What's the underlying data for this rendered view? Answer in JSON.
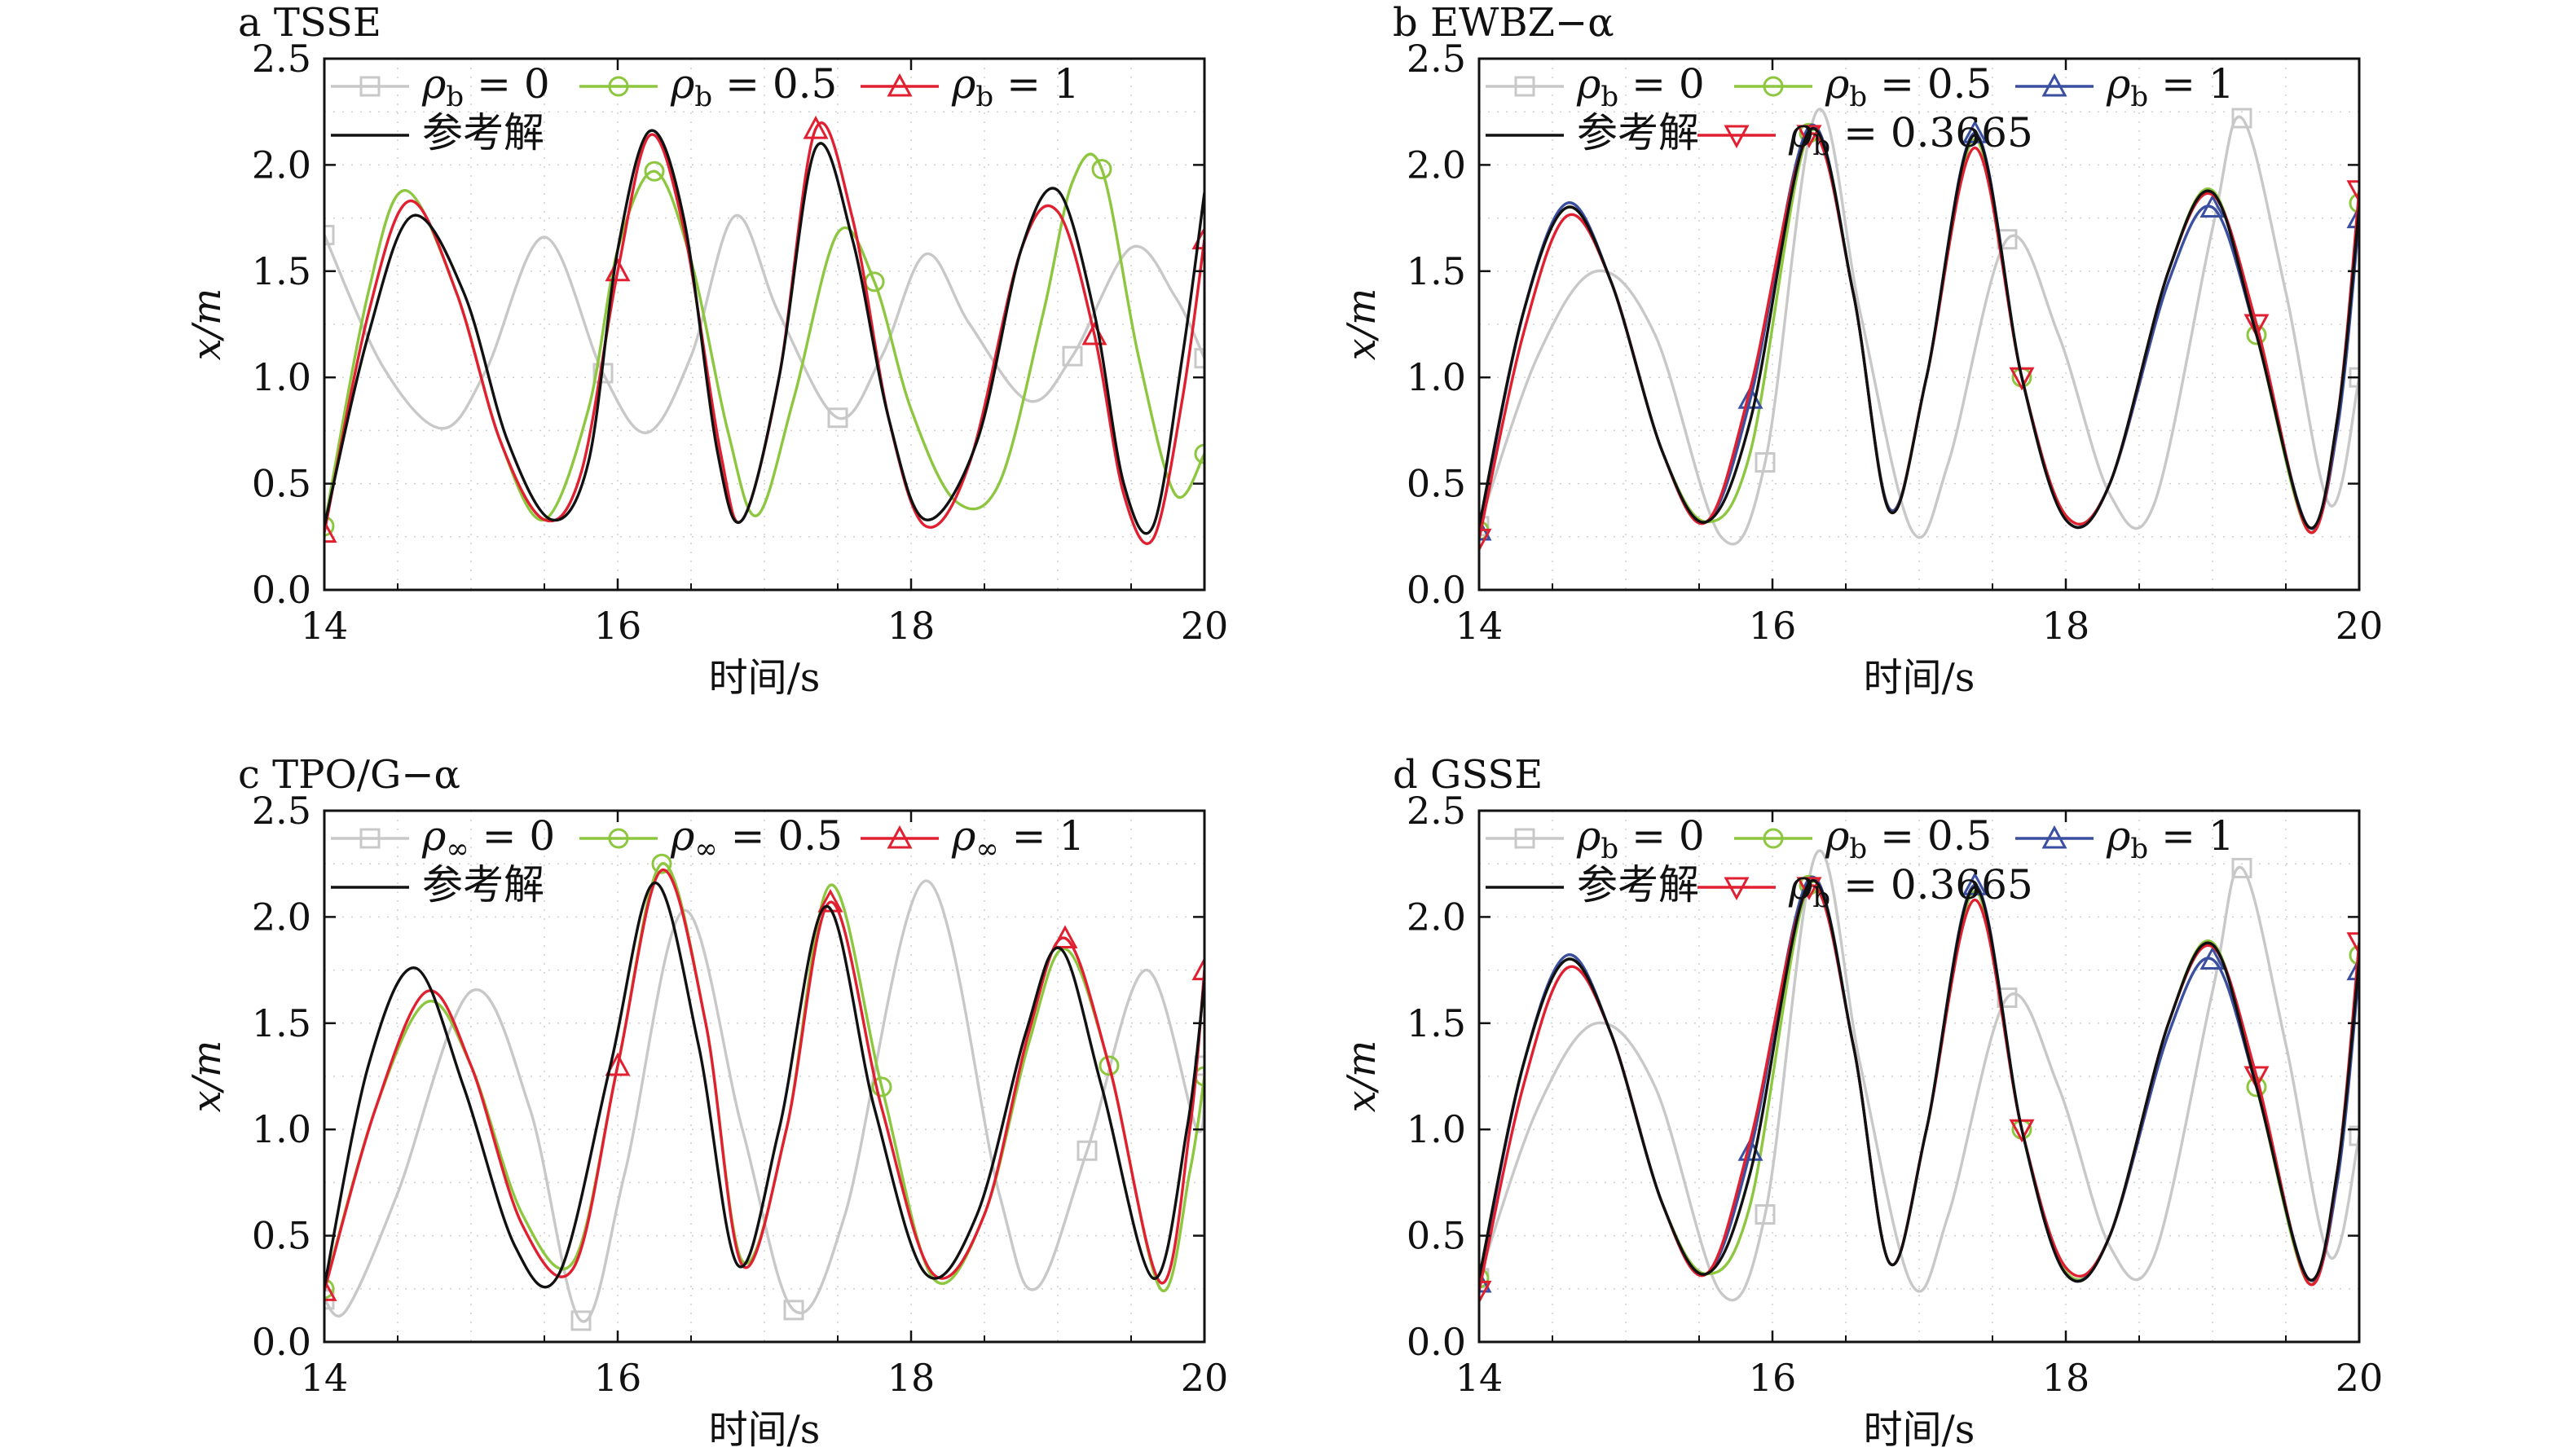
{
  "figure": {
    "panel_titles": [
      "a TSSE",
      "b EWBZ−α",
      "c TPO/G−α",
      "d GSSE"
    ]
  },
  "chart_data": [
    {
      "type": "line",
      "title": "a TSSE",
      "xlabel": "时间/s",
      "ylabel": "x/m",
      "xlim": [
        14,
        20
      ],
      "ylim": [
        0,
        2.5
      ],
      "xticks": [
        "14",
        "16",
        "18",
        "20"
      ],
      "yticks": [
        "0.0",
        "0.5",
        "1.0",
        "1.5",
        "2.0",
        "2.5"
      ],
      "grid": "dotted",
      "legend": "top-left",
      "series": [
        {
          "name": "ρ_b = 0",
          "legend_label": "ρb = 0",
          "color": "#c8c8c8",
          "marker": "square",
          "x": [
            14.0,
            14.4,
            14.8,
            15.1,
            15.5,
            15.9,
            16.2,
            16.5,
            16.8,
            17.1,
            17.5,
            17.8,
            18.1,
            18.4,
            18.8,
            19.1,
            19.5,
            19.8,
            20.0
          ],
          "y": [
            1.67,
            1.05,
            0.76,
            1.03,
            1.66,
            1.02,
            0.74,
            1.1,
            1.76,
            1.3,
            0.81,
            1.1,
            1.58,
            1.25,
            0.89,
            1.1,
            1.61,
            1.38,
            1.09
          ]
        },
        {
          "name": "ρ_b = 0.5",
          "legend_label": "ρb = 0.5",
          "color": "#8dc63f",
          "marker": "circle",
          "x": [
            14.0,
            14.3,
            14.55,
            14.9,
            15.2,
            15.5,
            15.8,
            16.0,
            16.25,
            16.5,
            16.75,
            16.95,
            17.2,
            17.5,
            17.75,
            18.0,
            18.3,
            18.6,
            18.9,
            19.1,
            19.3,
            19.55,
            19.8,
            20.0
          ],
          "y": [
            0.3,
            1.4,
            1.88,
            1.4,
            0.7,
            0.33,
            0.85,
            1.6,
            1.97,
            1.55,
            0.75,
            0.35,
            0.9,
            1.68,
            1.45,
            0.85,
            0.42,
            0.5,
            1.3,
            1.92,
            1.98,
            1.1,
            0.45,
            0.64
          ]
        },
        {
          "name": "ρ_b = 1",
          "legend_label": "ρb = 1",
          "color": "#e02030",
          "marker": "triangle",
          "x": [
            14.0,
            14.3,
            14.58,
            14.9,
            15.2,
            15.5,
            15.75,
            16.0,
            16.22,
            16.45,
            16.7,
            16.85,
            17.1,
            17.35,
            17.6,
            17.85,
            18.1,
            18.4,
            18.75,
            19.0,
            19.25,
            19.45,
            19.65,
            19.85,
            20.0
          ],
          "y": [
            0.27,
            1.3,
            1.83,
            1.4,
            0.7,
            0.33,
            0.55,
            1.5,
            2.14,
            1.7,
            0.65,
            0.33,
            1.0,
            2.17,
            1.75,
            0.8,
            0.3,
            0.6,
            1.6,
            1.78,
            1.2,
            0.45,
            0.24,
            0.9,
            1.65
          ]
        },
        {
          "name": "参考解",
          "legend_label": "参考解",
          "color": "#111111",
          "marker": "none",
          "x": [
            14.0,
            14.3,
            14.6,
            14.95,
            15.25,
            15.55,
            15.8,
            16.0,
            16.22,
            16.45,
            16.68,
            16.85,
            17.1,
            17.35,
            17.6,
            17.85,
            18.1,
            18.45,
            18.75,
            19.0,
            19.25,
            19.45,
            19.65,
            19.85,
            20.0
          ],
          "y": [
            0.3,
            1.2,
            1.76,
            1.4,
            0.7,
            0.33,
            0.6,
            1.6,
            2.16,
            1.75,
            0.65,
            0.33,
            1.0,
            2.08,
            1.65,
            0.8,
            0.33,
            0.7,
            1.6,
            1.88,
            1.3,
            0.5,
            0.3,
            1.1,
            1.87
          ]
        }
      ]
    },
    {
      "type": "line",
      "title": "b EWBZ−α",
      "xlabel": "时间/s",
      "ylabel": "x/m",
      "xlim": [
        14,
        20
      ],
      "ylim": [
        0,
        2.5
      ],
      "xticks": [
        "14",
        "16",
        "18",
        "20"
      ],
      "yticks": [
        "0.0",
        "0.5",
        "1.0",
        "1.5",
        "2.0",
        "2.5"
      ],
      "grid": "dotted",
      "legend": "top-left",
      "series": [
        {
          "name": "ρ_b = 0",
          "legend_label": "ρb = 0",
          "color": "#c8c8c8",
          "marker": "square",
          "x": [
            14.0,
            14.4,
            14.8,
            15.2,
            15.65,
            15.95,
            16.3,
            16.6,
            16.95,
            17.2,
            17.6,
            17.95,
            18.3,
            18.6,
            19.0,
            19.2,
            19.5,
            19.8,
            20.0
          ],
          "y": [
            0.3,
            1.1,
            1.5,
            1.2,
            0.25,
            0.6,
            2.25,
            1.3,
            0.28,
            0.6,
            1.65,
            1.2,
            0.45,
            0.4,
            1.7,
            2.22,
            1.4,
            0.4,
            1.0
          ]
        },
        {
          "name": "ρ_b = 0.5",
          "legend_label": "ρb = 0.5",
          "color": "#8dc63f",
          "marker": "circle",
          "x": [
            14.0,
            14.3,
            14.6,
            14.9,
            15.25,
            15.55,
            15.85,
            16.25,
            16.55,
            16.8,
            17.05,
            17.38,
            17.7,
            18.0,
            18.3,
            18.7,
            19.0,
            19.3,
            19.65,
            19.85,
            20.0
          ],
          "y": [
            0.28,
            1.3,
            1.8,
            1.45,
            0.65,
            0.32,
            0.65,
            2.15,
            1.4,
            0.38,
            1.0,
            2.12,
            1.0,
            0.35,
            0.5,
            1.5,
            1.88,
            1.2,
            0.28,
            0.8,
            1.82
          ]
        },
        {
          "name": "ρ_b = 1",
          "legend_label": "ρb = 1",
          "color": "#3a4fa0",
          "marker": "triangle",
          "x": [
            14.0,
            14.3,
            14.6,
            14.9,
            15.25,
            15.55,
            15.85,
            16.25,
            16.55,
            16.8,
            17.05,
            17.38,
            17.7,
            18.0,
            18.3,
            18.7,
            19.0,
            19.3,
            19.65,
            19.85,
            20.0
          ],
          "y": [
            0.28,
            1.3,
            1.82,
            1.45,
            0.65,
            0.32,
            0.9,
            2.18,
            1.4,
            0.38,
            1.0,
            2.15,
            1.0,
            0.33,
            0.5,
            1.45,
            1.8,
            1.2,
            0.3,
            0.75,
            1.75
          ]
        },
        {
          "name": "ρ_b = 0.3665",
          "legend_label": "ρb = 0.3665",
          "color": "#e02030",
          "marker": "triangle-down",
          "x": [
            14.0,
            14.3,
            14.6,
            14.9,
            15.25,
            15.55,
            15.85,
            16.25,
            16.55,
            16.8,
            17.05,
            17.38,
            17.7,
            18.0,
            18.3,
            18.7,
            19.0,
            19.3,
            19.65,
            19.85,
            20.0
          ],
          "y": [
            0.24,
            1.2,
            1.76,
            1.45,
            0.65,
            0.32,
            0.95,
            2.14,
            1.4,
            0.37,
            1.0,
            2.08,
            1.0,
            0.35,
            0.5,
            1.5,
            1.86,
            1.25,
            0.28,
            0.8,
            1.88
          ]
        },
        {
          "name": "参考解",
          "legend_label": "参考解",
          "color": "#111111",
          "marker": "none",
          "x": [
            14.0,
            14.3,
            14.6,
            14.9,
            15.25,
            15.55,
            15.85,
            16.25,
            16.55,
            16.8,
            17.05,
            17.38,
            17.7,
            18.0,
            18.3,
            18.7,
            19.0,
            19.3,
            19.65,
            19.85,
            20.0
          ],
          "y": [
            0.3,
            1.3,
            1.8,
            1.45,
            0.65,
            0.32,
            0.8,
            2.16,
            1.4,
            0.37,
            1.0,
            2.14,
            1.0,
            0.33,
            0.5,
            1.5,
            1.87,
            1.2,
            0.3,
            0.8,
            1.8
          ]
        }
      ]
    },
    {
      "type": "line",
      "title": "c TPO/G−α",
      "xlabel": "时间/s",
      "ylabel": "x/m",
      "xlim": [
        14,
        20
      ],
      "ylim": [
        0,
        2.5
      ],
      "xticks": [
        "14",
        "16",
        "18",
        "20"
      ],
      "yticks": [
        "0.0",
        "0.5",
        "1.0",
        "1.5",
        "2.0",
        "2.5"
      ],
      "grid": "dotted",
      "legend": "top-left",
      "series": [
        {
          "name": "ρ∞ = 0",
          "legend_label": "ρ∞ = 0",
          "color": "#c8c8c8",
          "marker": "square",
          "x": [
            14.0,
            14.15,
            14.5,
            15.0,
            15.4,
            15.75,
            16.05,
            16.45,
            16.85,
            17.2,
            17.55,
            18.1,
            18.6,
            18.85,
            19.2,
            19.6,
            19.95,
            20.0
          ],
          "y": [
            0.2,
            0.15,
            0.7,
            1.65,
            1.1,
            0.1,
            0.8,
            2.03,
            1.0,
            0.15,
            0.6,
            2.17,
            0.7,
            0.25,
            0.9,
            1.75,
            1.0,
            1.3
          ]
        },
        {
          "name": "ρ∞ = 0.5",
          "legend_label": "ρ∞ = 0.5",
          "color": "#8dc63f",
          "marker": "circle",
          "x": [
            14.0,
            14.35,
            14.7,
            15.0,
            15.35,
            15.7,
            16.0,
            16.3,
            16.6,
            16.85,
            17.15,
            17.45,
            17.8,
            18.15,
            18.5,
            18.8,
            19.05,
            19.35,
            19.7,
            19.9,
            20.0
          ],
          "y": [
            0.25,
            1.1,
            1.6,
            1.3,
            0.6,
            0.38,
            1.3,
            2.25,
            1.5,
            0.38,
            1.0,
            2.15,
            1.2,
            0.3,
            0.6,
            1.4,
            1.85,
            1.3,
            0.25,
            0.8,
            1.25
          ]
        },
        {
          "name": "ρ∞ = 1",
          "legend_label": "ρ∞ = 1",
          "color": "#e02030",
          "marker": "triangle",
          "x": [
            14.0,
            14.35,
            14.7,
            15.0,
            15.35,
            15.7,
            16.0,
            16.3,
            16.6,
            16.85,
            17.15,
            17.45,
            17.8,
            18.15,
            18.5,
            18.8,
            19.05,
            19.35,
            19.7,
            19.9,
            20.0
          ],
          "y": [
            0.24,
            1.1,
            1.65,
            1.3,
            0.55,
            0.35,
            1.3,
            2.22,
            1.5,
            0.36,
            1.0,
            2.07,
            1.1,
            0.32,
            0.6,
            1.45,
            1.9,
            1.3,
            0.28,
            1.0,
            1.75
          ]
        },
        {
          "name": "参考解",
          "legend_label": "参考解",
          "color": "#111111",
          "marker": "none",
          "x": [
            14.0,
            14.3,
            14.62,
            14.95,
            15.3,
            15.6,
            15.95,
            16.25,
            16.55,
            16.82,
            17.1,
            17.42,
            17.75,
            18.1,
            18.45,
            18.78,
            19.02,
            19.3,
            19.65,
            19.88,
            20.0
          ],
          "y": [
            0.26,
            1.3,
            1.76,
            1.2,
            0.45,
            0.32,
            1.3,
            2.16,
            1.4,
            0.36,
            1.0,
            2.05,
            1.1,
            0.32,
            0.6,
            1.45,
            1.85,
            1.2,
            0.3,
            1.0,
            1.7
          ]
        }
      ]
    },
    {
      "type": "line",
      "title": "d GSSE",
      "xlabel": "时间/s",
      "ylabel": "x/m",
      "xlim": [
        14,
        20
      ],
      "ylim": [
        0,
        2.5
      ],
      "xticks": [
        "14",
        "16",
        "18",
        "20"
      ],
      "yticks": [
        "0.0",
        "0.5",
        "1.0",
        "1.5",
        "2.0",
        "2.5"
      ],
      "grid": "dotted",
      "legend": "top-left",
      "series": [
        {
          "name": "ρ_b = 0",
          "legend_label": "ρb = 0",
          "color": "#c8c8c8",
          "marker": "square",
          "x": [
            14.0,
            14.4,
            14.8,
            15.2,
            15.65,
            15.95,
            16.3,
            16.6,
            16.95,
            17.2,
            17.6,
            17.95,
            18.3,
            18.6,
            19.0,
            19.2,
            19.5,
            19.8,
            20.0
          ],
          "y": [
            0.3,
            1.1,
            1.5,
            1.2,
            0.23,
            0.6,
            2.3,
            1.3,
            0.27,
            0.6,
            1.62,
            1.2,
            0.45,
            0.4,
            1.65,
            2.23,
            1.4,
            0.4,
            0.97
          ]
        },
        {
          "name": "ρ_b = 0.5",
          "legend_label": "ρb = 0.5",
          "color": "#8dc63f",
          "marker": "circle",
          "x": [
            14.0,
            14.3,
            14.6,
            14.9,
            15.25,
            15.55,
            15.85,
            16.25,
            16.55,
            16.8,
            17.05,
            17.38,
            17.7,
            18.0,
            18.3,
            18.7,
            19.0,
            19.3,
            19.65,
            19.85,
            20.0
          ],
          "y": [
            0.3,
            1.3,
            1.8,
            1.45,
            0.65,
            0.32,
            0.65,
            2.15,
            1.4,
            0.37,
            1.0,
            2.12,
            1.0,
            0.33,
            0.5,
            1.5,
            1.88,
            1.2,
            0.28,
            0.8,
            1.82
          ]
        },
        {
          "name": "ρ_b = 1",
          "legend_label": "ρb = 1",
          "color": "#3a4fa0",
          "marker": "triangle",
          "x": [
            14.0,
            14.3,
            14.6,
            14.9,
            15.25,
            15.55,
            15.85,
            16.25,
            16.55,
            16.8,
            17.05,
            17.38,
            17.7,
            18.0,
            18.3,
            18.7,
            19.0,
            19.3,
            19.65,
            19.85,
            20.0
          ],
          "y": [
            0.28,
            1.3,
            1.82,
            1.45,
            0.65,
            0.32,
            0.9,
            2.18,
            1.4,
            0.37,
            1.0,
            2.15,
            1.0,
            0.32,
            0.5,
            1.45,
            1.8,
            1.2,
            0.3,
            0.75,
            1.75
          ]
        },
        {
          "name": "ρ_b = 0.3665",
          "legend_label": "ρb = 0.3665",
          "color": "#e02030",
          "marker": "triangle-down",
          "x": [
            14.0,
            14.3,
            14.6,
            14.9,
            15.25,
            15.55,
            15.85,
            16.25,
            16.55,
            16.8,
            17.05,
            17.38,
            17.7,
            18.0,
            18.3,
            18.7,
            19.0,
            19.3,
            19.65,
            19.85,
            20.0
          ],
          "y": [
            0.24,
            1.2,
            1.76,
            1.45,
            0.65,
            0.32,
            0.95,
            2.14,
            1.4,
            0.37,
            1.0,
            2.08,
            1.0,
            0.35,
            0.5,
            1.5,
            1.86,
            1.25,
            0.28,
            0.8,
            1.88
          ]
        },
        {
          "name": "参考解",
          "legend_label": "参考解",
          "color": "#111111",
          "marker": "none",
          "x": [
            14.0,
            14.3,
            14.6,
            14.9,
            15.25,
            15.55,
            15.85,
            16.25,
            16.55,
            16.8,
            17.05,
            17.38,
            17.7,
            18.0,
            18.3,
            18.7,
            19.0,
            19.3,
            19.65,
            19.85,
            20.0
          ],
          "y": [
            0.3,
            1.3,
            1.8,
            1.45,
            0.65,
            0.32,
            0.8,
            2.16,
            1.4,
            0.37,
            1.0,
            2.14,
            1.0,
            0.32,
            0.5,
            1.5,
            1.87,
            1.2,
            0.3,
            0.8,
            1.8
          ]
        }
      ]
    }
  ]
}
